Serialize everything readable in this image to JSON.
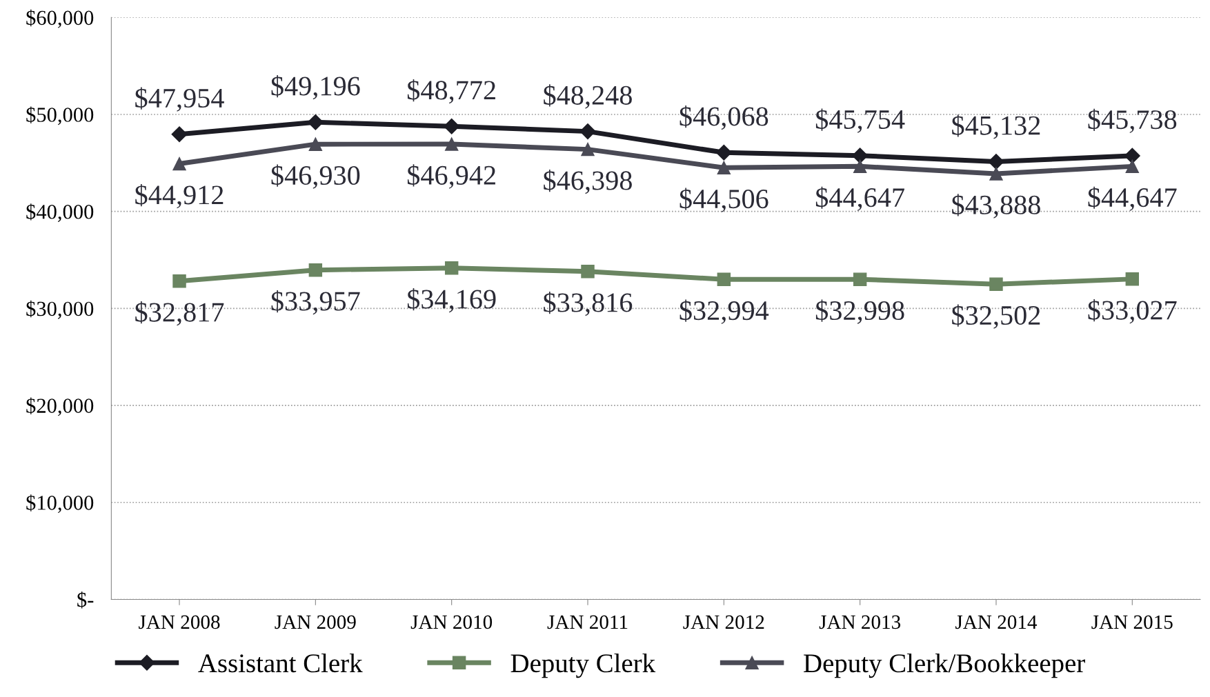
{
  "chart_data": {
    "type": "line",
    "categories": [
      "JAN 2008",
      "JAN 2009",
      "JAN 2010",
      "JAN 2011",
      "JAN 2012",
      "JAN 2013",
      "JAN 2014",
      "JAN 2015"
    ],
    "series": [
      {
        "name": "Assistant Clerk",
        "color": "#1c1c24",
        "marker": "diamond",
        "values": [
          47954,
          49196,
          48772,
          48248,
          46068,
          45754,
          45132,
          45738
        ],
        "value_labels": [
          "$47,954",
          "$49,196",
          "$48,772",
          "$48,248",
          "$46,068",
          "$45,754",
          "$45,132",
          "$45,738"
        ]
      },
      {
        "name": "Deputy Clerk",
        "color": "#6a8561",
        "marker": "square",
        "values": [
          32817,
          33957,
          34169,
          33816,
          32994,
          32998,
          32502,
          33027
        ],
        "value_labels": [
          "$32,817",
          "$33,957",
          "$34,169",
          "$33,816",
          "$32,994",
          "$32,998",
          "$32,502",
          "$33,027"
        ]
      },
      {
        "name": "Deputy Clerk/Bookkeeper",
        "color": "#4a4a55",
        "marker": "triangle",
        "values": [
          44912,
          46930,
          46942,
          46398,
          44506,
          44647,
          43888,
          44647
        ],
        "value_labels": [
          "$44,912",
          "$46,930",
          "$46,942",
          "$46,398",
          "$44,506",
          "$44,647",
          "$43,888",
          "$44,647"
        ]
      }
    ],
    "ylim": [
      0,
      60000
    ],
    "yticks": [
      {
        "value": 0,
        "label": "$-"
      },
      {
        "value": 10000,
        "label": "$10,000"
      },
      {
        "value": 20000,
        "label": "$20,000"
      },
      {
        "value": 30000,
        "label": "$30,000"
      },
      {
        "value": 40000,
        "label": "$40,000"
      },
      {
        "value": 50000,
        "label": "$50,000"
      },
      {
        "value": 60000,
        "label": "$60,000"
      }
    ],
    "grid": "y",
    "legend": "bottom",
    "line_style": "solid"
  }
}
